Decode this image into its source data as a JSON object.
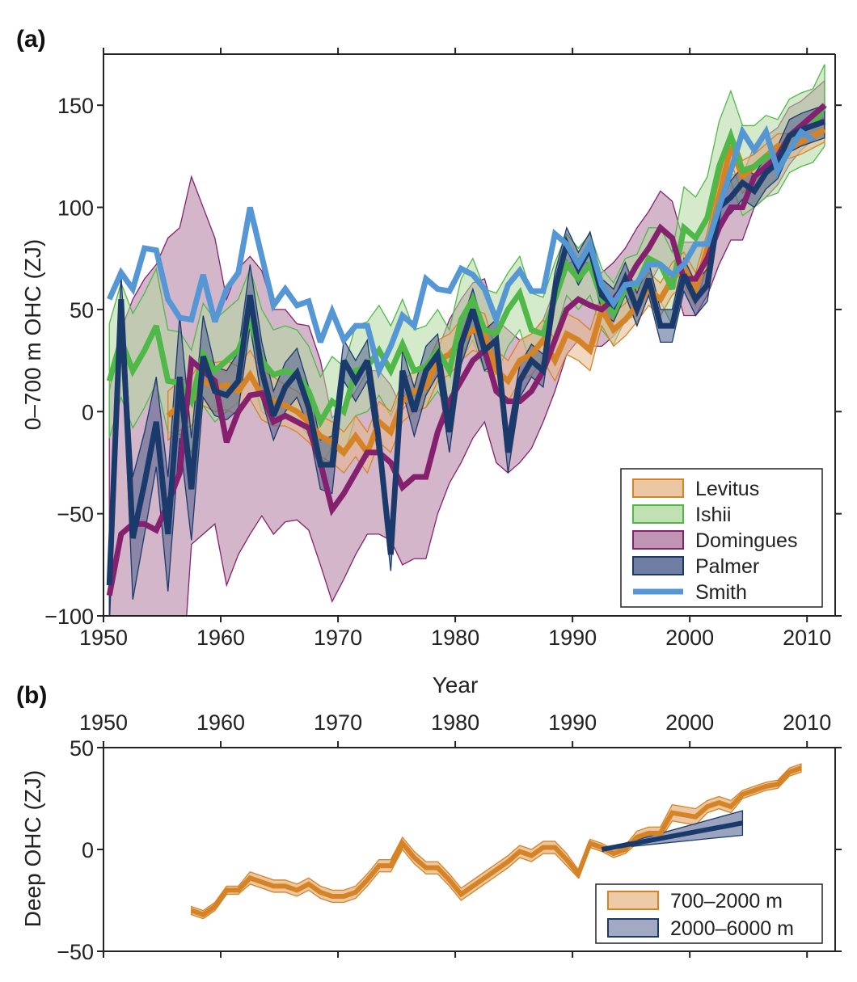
{
  "chart_data": [
    {
      "type": "area",
      "panel_label": "(a)",
      "xlabel": "Year",
      "ylabel": "0–700 m OHC (ZJ)",
      "xlim": [
        1950,
        2012.4
      ],
      "ylim": [
        -100,
        175
      ],
      "xticks": [
        1950,
        1960,
        1970,
        1980,
        1990,
        2000,
        2010
      ],
      "yticks": [
        -100,
        -50,
        0,
        50,
        100,
        150
      ],
      "ytick_labels": [
        "−100",
        "−50",
        "0",
        "50",
        "100",
        "150"
      ],
      "grid": false,
      "legend_position": "bottom-right",
      "series": [
        {
          "name": "Domingues",
          "line_color": "#84206e",
          "fill_color": "#b07aa0",
          "start": 1950.5,
          "values": [
            -90,
            -60,
            -55,
            -55,
            -58,
            -45,
            -30,
            25,
            20,
            15,
            -15,
            0,
            8,
            9,
            -5,
            -2,
            -5,
            -8,
            -25,
            -48,
            -40,
            -30,
            -20,
            -20,
            -25,
            -37,
            -32,
            -32,
            -10,
            5,
            15,
            25,
            30,
            10,
            5,
            5,
            10,
            20,
            35,
            50,
            55,
            52,
            50,
            55,
            62,
            72,
            80,
            90,
            85,
            65,
            65,
            75,
            90,
            100,
            100,
            115,
            120,
            125,
            135,
            140,
            145,
            150
          ],
          "uncertainty": [
            100,
            100,
            110,
            120,
            130,
            130,
            120,
            90,
            80,
            70,
            70,
            70,
            68,
            60,
            55,
            52,
            48,
            50,
            50,
            45,
            42,
            40,
            40,
            40,
            38,
            38,
            40,
            40,
            40,
            40,
            40,
            38,
            35,
            35,
            35,
            30,
            28,
            25,
            25,
            22,
            20,
            20,
            18,
            18,
            18,
            18,
            18,
            18,
            18,
            18,
            18,
            18,
            18,
            16,
            16,
            15,
            15,
            14,
            14,
            12,
            12,
            12
          ]
        },
        {
          "name": "Ishii",
          "line_color": "#4fb848",
          "fill_color": "#b3d9a0",
          "start": 1950.5,
          "values": [
            15,
            35,
            20,
            30,
            42,
            15,
            14,
            5,
            28,
            20,
            25,
            30,
            45,
            25,
            18,
            20,
            18,
            10,
            -5,
            5,
            0,
            20,
            22,
            30,
            20,
            33,
            20,
            22,
            30,
            20,
            45,
            55,
            40,
            38,
            50,
            58,
            40,
            38,
            55,
            72,
            65,
            72,
            55,
            48,
            60,
            62,
            75,
            72,
            60,
            90,
            85,
            95,
            120,
            135,
            118,
            120,
            125,
            125,
            135,
            138,
            140,
            150
          ],
          "uncertainty": [
            28,
            28,
            28,
            28,
            28,
            25,
            25,
            25,
            25,
            25,
            25,
            25,
            25,
            25,
            22,
            22,
            22,
            22,
            22,
            22,
            22,
            22,
            22,
            22,
            22,
            22,
            20,
            20,
            20,
            20,
            20,
            20,
            20,
            20,
            18,
            18,
            18,
            18,
            18,
            15,
            15,
            15,
            15,
            15,
            15,
            15,
            15,
            18,
            18,
            20,
            20,
            20,
            22,
            22,
            22,
            20,
            20,
            18,
            18,
            18,
            18,
            20
          ]
        },
        {
          "name": "Levitus",
          "line_color": "#d58325",
          "fill_color": "#e6b88c",
          "start": 1955.5,
          "values": [
            -2,
            3,
            5,
            15,
            12,
            13,
            10,
            18,
            8,
            5,
            3,
            0,
            -5,
            -12,
            -15,
            -20,
            -12,
            -20,
            -5,
            -10,
            5,
            10,
            12,
            25,
            28,
            35,
            40,
            38,
            20,
            15,
            25,
            28,
            35,
            25,
            38,
            35,
            30,
            50,
            40,
            45,
            52,
            60,
            55,
            65,
            70,
            60,
            80,
            105,
            130,
            115,
            120,
            125,
            130,
            130,
            132,
            135,
            138
          ],
          "uncertainty": [
            12,
            12,
            12,
            12,
            12,
            12,
            12,
            12,
            12,
            12,
            10,
            10,
            10,
            10,
            10,
            10,
            10,
            10,
            10,
            10,
            10,
            10,
            10,
            10,
            10,
            10,
            10,
            10,
            10,
            10,
            10,
            10,
            10,
            10,
            10,
            10,
            10,
            8,
            8,
            8,
            8,
            8,
            8,
            8,
            8,
            8,
            8,
            8,
            8,
            8,
            6,
            6,
            6,
            6,
            6,
            6,
            6
          ]
        },
        {
          "name": "Palmer",
          "line_color": "#1a3a6c",
          "fill_color": "#4e5e8c",
          "start": 1950.5,
          "values": [
            -85,
            55,
            -62,
            -35,
            -5,
            -60,
            17,
            -38,
            27,
            10,
            8,
            15,
            57,
            20,
            -2,
            12,
            19,
            2,
            -26,
            -26,
            25,
            15,
            25,
            -15,
            -70,
            20,
            0,
            20,
            28,
            -10,
            33,
            50,
            30,
            35,
            -20,
            15,
            25,
            20,
            60,
            82,
            70,
            80,
            57,
            52,
            65,
            50,
            65,
            42,
            42,
            67,
            55,
            62,
            100,
            105,
            112,
            108,
            117,
            122,
            135,
            138,
            140,
            142
          ],
          "uncertainty": [
            20,
            12,
            30,
            25,
            22,
            28,
            30,
            25,
            20,
            12,
            12,
            14,
            15,
            14,
            12,
            12,
            12,
            10,
            12,
            14,
            10,
            10,
            10,
            10,
            8,
            10,
            12,
            12,
            10,
            10,
            10,
            10,
            10,
            10,
            10,
            8,
            8,
            8,
            8,
            8,
            8,
            8,
            8,
            8,
            8,
            8,
            8,
            8,
            8,
            8,
            8,
            8,
            8,
            8,
            8,
            8,
            8,
            8,
            8,
            8,
            8,
            8
          ]
        },
        {
          "name": "Smith",
          "line_color": "#5597d4",
          "start": 1950.5,
          "values": [
            55,
            68,
            60,
            80,
            79,
            55,
            46,
            45,
            67,
            44,
            60,
            68,
            100,
            76,
            52,
            60,
            52,
            54,
            34,
            49,
            35,
            42,
            42,
            20,
            32,
            47,
            42,
            65,
            60,
            59,
            70,
            67,
            60,
            45,
            62,
            69,
            59,
            59,
            87,
            82,
            72,
            82,
            62,
            53,
            62,
            63,
            72,
            72,
            67,
            72,
            82,
            82,
            100,
            118,
            137,
            128,
            137,
            118,
            128,
            137,
            133
          ]
        }
      ]
    },
    {
      "type": "area",
      "panel_label": "(b)",
      "ylabel": "Deep OHC (ZJ)",
      "xlim": [
        1950,
        2012.4
      ],
      "ylim": [
        -50,
        50
      ],
      "xticks": [
        1950,
        1960,
        1970,
        1980,
        1990,
        2000,
        2010
      ],
      "yticks": [
        -50,
        0,
        50
      ],
      "ytick_labels": [
        "−50",
        "0",
        "50"
      ],
      "grid": false,
      "legend_position": "bottom-right",
      "series": [
        {
          "name": "700–2000 m",
          "line_color": "#d58325",
          "fill_color": "#e8bd92",
          "start": 1957.5,
          "values": [
            -30,
            -32,
            -28,
            -20,
            -20,
            -14,
            -16,
            -18,
            -18,
            -20,
            -17,
            -21,
            -23,
            -23,
            -21,
            -15,
            -8,
            -8,
            3,
            -4,
            -9,
            -9,
            -15,
            -22,
            -18,
            -14,
            -10,
            -6,
            -1,
            -3,
            1,
            1,
            -5,
            -12,
            3,
            1,
            -2,
            0,
            6,
            8,
            8,
            18,
            17,
            16,
            21,
            23,
            21,
            27,
            29,
            31,
            32,
            38,
            40
          ],
          "uncertainty": [
            2,
            2,
            2,
            2,
            2,
            3,
            3,
            3,
            3,
            3,
            3,
            3,
            3,
            3,
            3,
            3,
            3,
            3,
            3,
            3,
            3,
            3,
            3,
            3,
            3,
            3,
            3,
            3,
            3,
            3,
            3,
            3,
            3,
            2,
            2,
            2,
            2,
            2,
            3,
            3,
            3,
            4,
            4,
            4,
            3,
            3,
            3,
            2,
            2,
            2,
            2,
            2,
            2
          ]
        },
        {
          "name": "2000–6000 m",
          "line_color": "#1a3a6c",
          "fill_color": "#8b93b3",
          "start": 1992.5,
          "values": [
            0,
            13
          ],
          "x": [
            1992.5,
            2004.5
          ],
          "uncertainty": [
            0,
            6
          ]
        }
      ]
    }
  ]
}
